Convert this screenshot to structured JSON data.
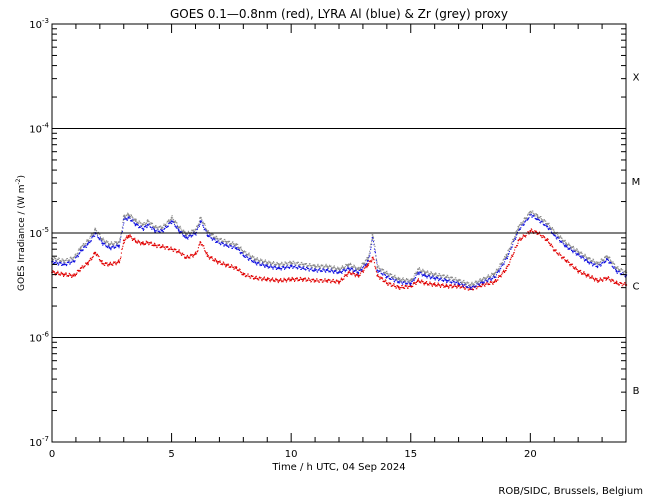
{
  "chart_data": {
    "type": "scatter",
    "title": "GOES 0.1—0.8nm (red), LYRA Al (blue) & Zr (grey) proxy",
    "xlabel": "Time / h UTC, 04 Sep 2024",
    "ylabel": "GOES Irradiance / (W m",
    "ylabel_exp": "-2",
    "ylabel_close": ")",
    "credit": "ROB/SIDC, Brussels, Belgium",
    "xlim": [
      0,
      24
    ],
    "ylim_log10": [
      -7,
      -3
    ],
    "y_scale": "log",
    "x_ticks": [
      {
        "value": 0,
        "label": "0"
      },
      {
        "value": 5,
        "label": "5"
      },
      {
        "value": 10,
        "label": "10"
      },
      {
        "value": 15,
        "label": "15"
      },
      {
        "value": 20,
        "label": "20"
      }
    ],
    "y_ticks": [
      {
        "exp": -7,
        "base": "10",
        "sup": "-7"
      },
      {
        "exp": -6,
        "base": "10",
        "sup": "-6"
      },
      {
        "exp": -5,
        "base": "10",
        "sup": "-5"
      },
      {
        "exp": -4,
        "base": "10",
        "sup": "-4"
      },
      {
        "exp": -3,
        "base": "10",
        "sup": "-3"
      }
    ],
    "flare_levels": [
      -6,
      -5,
      -4
    ],
    "flare_classes": [
      {
        "label": "X",
        "log_mid": -3.5
      },
      {
        "label": "M",
        "log_mid": -4.5
      },
      {
        "label": "C",
        "log_mid": -5.5
      },
      {
        "label": "B",
        "log_mid": -6.5
      }
    ],
    "grid": false,
    "series": [
      {
        "name": "GOES 0.1—0.8nm",
        "color": "#e00000",
        "x": [
          0,
          0.5,
          0.9,
          1.2,
          1.5,
          1.8,
          2.1,
          2.4,
          2.8,
          3.0,
          3.2,
          3.5,
          3.8,
          4.0,
          4.3,
          4.6,
          5.0,
          5.3,
          5.6,
          6.0,
          6.2,
          6.5,
          6.9,
          7.3,
          7.7,
          8.0,
          8.5,
          9.0,
          9.5,
          10.0,
          10.5,
          11.0,
          11.5,
          12.0,
          12.4,
          12.8,
          13.2,
          13.4,
          13.6,
          14.0,
          14.5,
          15.0,
          15.3,
          15.6,
          16.0,
          16.5,
          17.0,
          17.5,
          18.0,
          18.5,
          19.0,
          19.5,
          20.0,
          20.3,
          20.7,
          21.0,
          21.5,
          22.0,
          22.4,
          22.8,
          23.2,
          23.6,
          24.0
        ],
        "y": [
          4.2e-06,
          4e-06,
          3.9e-06,
          4.6e-06,
          5.2e-06,
          6.5e-06,
          5.1e-06,
          5e-06,
          5.3e-06,
          8.5e-06,
          9.4e-06,
          8.3e-06,
          7.9e-06,
          8.1e-06,
          7.6e-06,
          7.4e-06,
          7e-06,
          6.6e-06,
          5.8e-06,
          6.3e-06,
          8.2e-06,
          6e-06,
          5.3e-06,
          4.9e-06,
          4.6e-06,
          4e-06,
          3.7e-06,
          3.6e-06,
          3.5e-06,
          3.6e-06,
          3.6e-06,
          3.5e-06,
          3.5e-06,
          3.4e-06,
          4.2e-06,
          3.9e-06,
          5e-06,
          5.8e-06,
          3.9e-06,
          3.3e-06,
          3e-06,
          3.1e-06,
          3.5e-06,
          3.3e-06,
          3.2e-06,
          3.1e-06,
          3.1e-06,
          2.9e-06,
          3.2e-06,
          3.4e-06,
          4.6e-06,
          8.5e-06,
          1.05e-05,
          1e-05,
          8.5e-06,
          6.8e-06,
          5.4e-06,
          4.3e-06,
          3.9e-06,
          3.5e-06,
          3.7e-06,
          3.3e-06,
          3.2e-06
        ]
      },
      {
        "name": "LYRA Al",
        "color": "#1010e0",
        "x": [
          0,
          0.5,
          0.9,
          1.2,
          1.5,
          1.8,
          2.1,
          2.4,
          2.8,
          3.0,
          3.2,
          3.5,
          3.8,
          4.0,
          4.3,
          4.6,
          5.0,
          5.3,
          5.6,
          6.0,
          6.2,
          6.5,
          6.9,
          7.3,
          7.7,
          8.0,
          8.5,
          9.0,
          9.5,
          10.0,
          10.5,
          11.0,
          11.5,
          12.0,
          12.4,
          12.8,
          13.2,
          13.4,
          13.6,
          14.0,
          14.5,
          15.0,
          15.3,
          15.6,
          16.0,
          16.5,
          17.0,
          17.5,
          18.0,
          18.5,
          19.0,
          19.5,
          20.0,
          20.3,
          20.7,
          21.0,
          21.5,
          22.0,
          22.4,
          22.8,
          23.2,
          23.6,
          24.0
        ],
        "y": [
          5.3e-06,
          5e-06,
          5.4e-06,
          6.8e-06,
          7.9e-06,
          1e-05,
          8e-06,
          7.2e-06,
          7.6e-06,
          1.35e-05,
          1.4e-05,
          1.2e-05,
          1.1e-05,
          1.2e-05,
          1.05e-05,
          1.05e-05,
          1.3e-05,
          1.05e-05,
          9e-06,
          1e-05,
          1.3e-05,
          9.5e-06,
          8.2e-06,
          7.6e-06,
          7.2e-06,
          6.1e-06,
          5.2e-06,
          4.8e-06,
          4.6e-06,
          4.8e-06,
          4.6e-06,
          4.4e-06,
          4.4e-06,
          4.2e-06,
          4.6e-06,
          4.2e-06,
          5.4e-06,
          9e-06,
          4.4e-06,
          3.8e-06,
          3.4e-06,
          3.3e-06,
          4.2e-06,
          3.9e-06,
          3.7e-06,
          3.5e-06,
          3.3e-06,
          3e-06,
          3.4e-06,
          3.8e-06,
          5.8e-06,
          1.08e-05,
          1.5e-05,
          1.35e-05,
          1.15e-05,
          9.5e-06,
          7.4e-06,
          6.2e-06,
          5.3e-06,
          4.8e-06,
          5.6e-06,
          4.3e-06,
          3.9e-06
        ]
      },
      {
        "name": "Zr",
        "color": "#8c8c8c",
        "x": [
          0,
          0.5,
          0.9,
          1.2,
          1.5,
          1.8,
          2.1,
          2.4,
          2.8,
          3.0,
          3.2,
          3.5,
          3.8,
          4.0,
          4.3,
          4.6,
          5.0,
          5.3,
          5.6,
          6.0,
          6.2,
          6.5,
          6.9,
          7.3,
          7.7,
          8.0,
          8.5,
          9.0,
          9.5,
          10.0,
          10.5,
          11.0,
          11.5,
          12.0,
          12.4,
          12.8,
          13.2,
          13.4,
          13.6,
          14.0,
          14.5,
          15.0,
          15.3,
          15.6,
          16.0,
          16.5,
          17.0,
          17.5,
          18.0,
          18.5,
          19.0,
          19.5,
          20.0,
          20.3,
          20.7,
          21.0,
          21.5,
          22.0,
          22.4,
          22.8,
          23.2,
          23.6,
          24.0
        ],
        "y": [
          5.7e-06,
          5.4e-06,
          5.8e-06,
          7.3e-06,
          8.5e-06,
          1.08e-05,
          8.6e-06,
          7.8e-06,
          8.2e-06,
          1.45e-05,
          1.5e-05,
          1.3e-05,
          1.2e-05,
          1.3e-05,
          1.13e-05,
          1.13e-05,
          1.4e-05,
          1.13e-05,
          9.7e-06,
          1.08e-05,
          1.4e-05,
          1.02e-05,
          8.8e-06,
          8.2e-06,
          7.7e-06,
          6.6e-06,
          5.6e-06,
          5.2e-06,
          5e-06,
          5.2e-06,
          5e-06,
          4.8e-06,
          4.8e-06,
          4.5e-06,
          5e-06,
          4.5e-06,
          5.8e-06,
          9.6e-06,
          4.7e-06,
          4.1e-06,
          3.6e-06,
          3.5e-06,
          4.5e-06,
          4.2e-06,
          4e-06,
          3.8e-06,
          3.5e-06,
          3.2e-06,
          3.6e-06,
          4.1e-06,
          6.2e-06,
          1.15e-05,
          1.6e-05,
          1.45e-05,
          1.23e-05,
          1.02e-05,
          7.9e-06,
          6.6e-06,
          5.7e-06,
          5.1e-06,
          6e-06,
          4.6e-06,
          4.2e-06
        ]
      }
    ]
  }
}
